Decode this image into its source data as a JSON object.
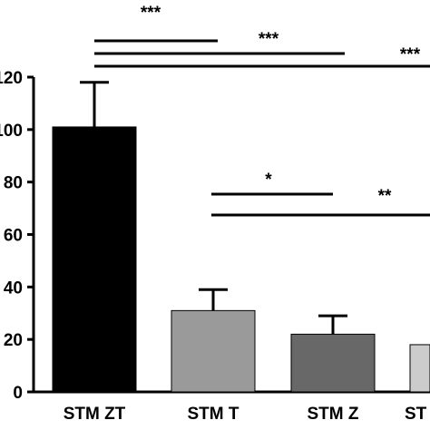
{
  "chart_data": {
    "type": "bar",
    "categories": [
      "STM ZT",
      "STM T",
      "STM Z",
      "ST"
    ],
    "values": [
      101,
      31,
      22,
      18
    ],
    "errors": [
      17,
      8,
      7,
      null
    ],
    "colors": [
      "#000000",
      "#9a9a9a",
      "#686868",
      "#cccccc"
    ],
    "ylim": [
      0,
      120
    ],
    "yticks": [
      0,
      20,
      40,
      60,
      80,
      100,
      120
    ],
    "annotations": [
      "***",
      "***",
      "***",
      "*",
      "**"
    ]
  }
}
